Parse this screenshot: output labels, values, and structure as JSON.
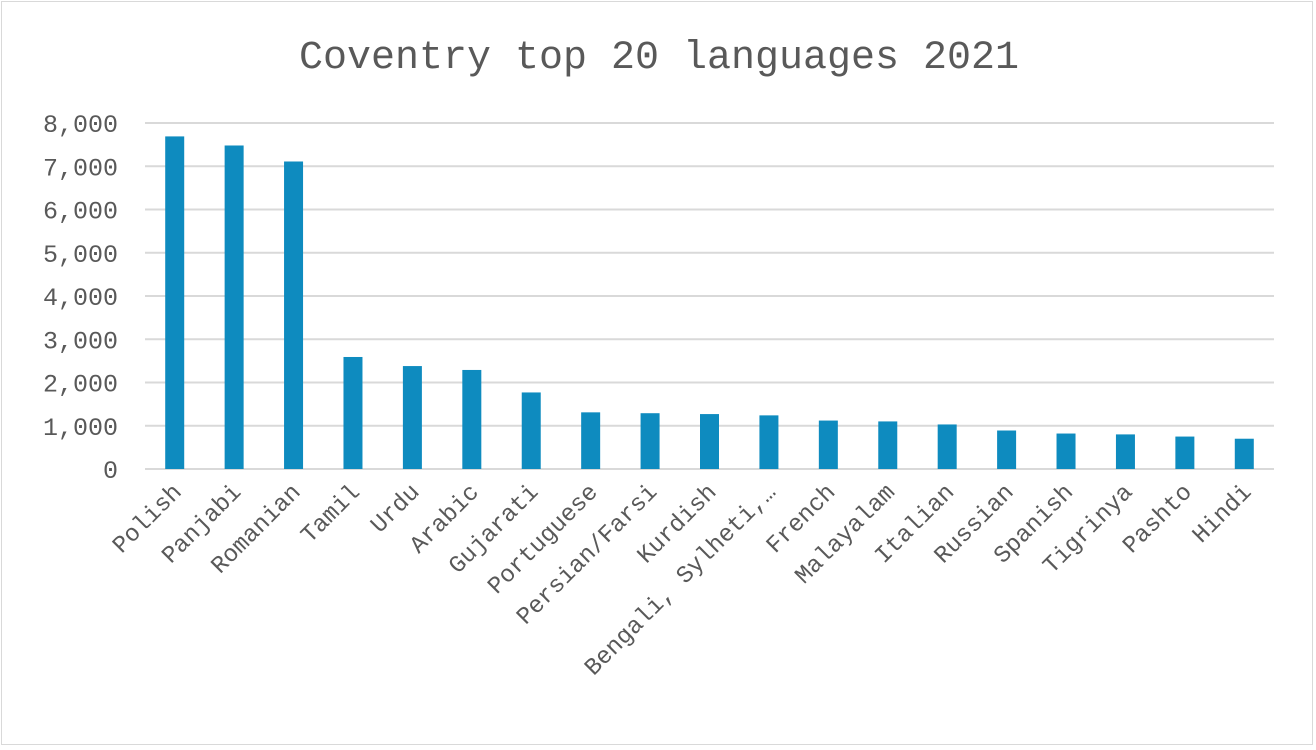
{
  "chart_data": {
    "type": "bar",
    "title": "Coventry top 20 languages 2021",
    "xlabel": "",
    "ylabel": "",
    "ylim": [
      0,
      8000
    ],
    "yticks": [
      0,
      1000,
      2000,
      3000,
      4000,
      5000,
      6000,
      7000,
      8000
    ],
    "ytick_labels": [
      "0",
      "1,000",
      "2,000",
      "3,000",
      "4,000",
      "5,000",
      "6,000",
      "7,000",
      "8,000"
    ],
    "grid": true,
    "legend": "none",
    "bar_color": "#0e8bbf",
    "categories": [
      "Polish",
      "Panjabi",
      "Romanian",
      "Tamil",
      "Urdu",
      "Arabic",
      "Gujarati",
      "Portuguese",
      "Persian/Farsi",
      "Kurdish",
      "Bengali, Sylheti,…",
      "French",
      "Malayalam",
      "Italian",
      "Russian",
      "Spanish",
      "Tigrinya",
      "Pashto",
      "Hindi"
    ],
    "values": [
      7690,
      7480,
      7110,
      2590,
      2380,
      2290,
      1770,
      1310,
      1290,
      1270,
      1240,
      1120,
      1100,
      1030,
      890,
      820,
      800,
      750,
      700
    ]
  }
}
